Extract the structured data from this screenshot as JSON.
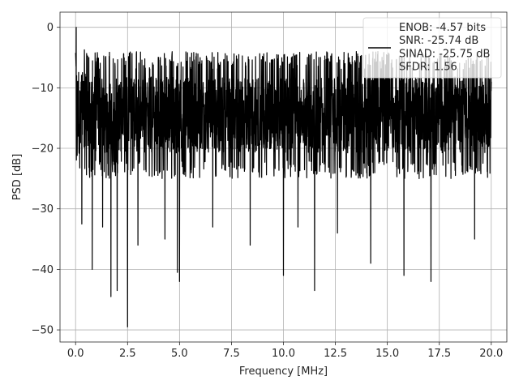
{
  "chart_data": {
    "type": "line",
    "xlabel": "Frequency [MHz]",
    "ylabel": "PSD [dB]",
    "xlim": [
      -0.75,
      20.75
    ],
    "ylim": [
      -52,
      2.5
    ],
    "xticks": [
      0.0,
      2.5,
      5.0,
      7.5,
      10.0,
      12.5,
      15.0,
      17.5,
      20.0
    ],
    "xtick_labels": [
      "0.0",
      "2.5",
      "5.0",
      "7.5",
      "10.0",
      "12.5",
      "15.0",
      "17.5",
      "20.0"
    ],
    "yticks": [
      0,
      -10,
      -20,
      -30,
      -40,
      -50
    ],
    "ytick_labels": [
      "0",
      "−10",
      "−20",
      "−30",
      "−40",
      "−50"
    ],
    "grid": true,
    "legend_position": "top-right",
    "series_color": "#000000",
    "series": [
      {
        "x_range": [
          0,
          20
        ],
        "peak": {
          "x": 0.03,
          "y": 0
        },
        "envelope_top": -4,
        "envelope_bottom": -25,
        "notable_dips": [
          {
            "x": 0.3,
            "y": -32.5
          },
          {
            "x": 0.8,
            "y": -40
          },
          {
            "x": 1.3,
            "y": -33
          },
          {
            "x": 1.7,
            "y": -44.5
          },
          {
            "x": 2.0,
            "y": -43.5
          },
          {
            "x": 2.5,
            "y": -49.5
          },
          {
            "x": 3.0,
            "y": -36
          },
          {
            "x": 4.3,
            "y": -35
          },
          {
            "x": 4.9,
            "y": -40.5
          },
          {
            "x": 5.0,
            "y": -42
          },
          {
            "x": 6.6,
            "y": -33
          },
          {
            "x": 8.4,
            "y": -36
          },
          {
            "x": 10.0,
            "y": -41
          },
          {
            "x": 10.7,
            "y": -33
          },
          {
            "x": 11.5,
            "y": -43.5
          },
          {
            "x": 12.6,
            "y": -34
          },
          {
            "x": 14.2,
            "y": -39
          },
          {
            "x": 15.8,
            "y": -41
          },
          {
            "x": 17.1,
            "y": -42
          },
          {
            "x": 19.2,
            "y": -35
          }
        ]
      }
    ],
    "legend_lines": [
      "ENOB: -4.57 bits",
      "SNR: -25.74 dB",
      "SINAD: -25.75 dB",
      "SFDR: 1.56"
    ]
  }
}
